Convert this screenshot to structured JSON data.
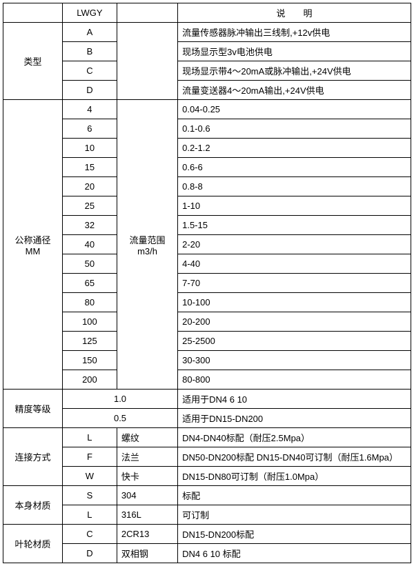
{
  "header": {
    "lwgy": "LWGY",
    "desc": "说　　明"
  },
  "type": {
    "label": "类型",
    "col3_blank": "",
    "rows": [
      {
        "code": "A",
        "desc": "流量传感器脉冲输出三线制,+12v供电"
      },
      {
        "code": "B",
        "desc": "现场显示型3v电池供电"
      },
      {
        "code": "C",
        "desc": "现场显示带4～20mA或脉冲输出,+24V供电"
      },
      {
        "code": "D",
        "desc": "流量变送器4～20mA输出,+24V供电"
      }
    ]
  },
  "dn": {
    "label": "公称通径\nMM",
    "range_label": "流量范围\nm3/h",
    "rows": [
      {
        "code": "4",
        "val": "0.04-0.25"
      },
      {
        "code": "6",
        "val": "0.1-0.6"
      },
      {
        "code": "10",
        "val": "0.2-1.2"
      },
      {
        "code": "15",
        "val": "0.6-6"
      },
      {
        "code": "20",
        "val": "0.8-8"
      },
      {
        "code": "25",
        "val": "1-10"
      },
      {
        "code": "32",
        "val": "1.5-15"
      },
      {
        "code": "40",
        "val": "2-20"
      },
      {
        "code": "50",
        "val": "4-40"
      },
      {
        "code": "65",
        "val": "7-70"
      },
      {
        "code": "80",
        "val": "10-100"
      },
      {
        "code": "100",
        "val": "20-200"
      },
      {
        "code": "125",
        "val": "25-2500"
      },
      {
        "code": "150",
        "val": "30-300"
      },
      {
        "code": "200",
        "val": "80-800"
      }
    ]
  },
  "accuracy": {
    "label": "精度等级",
    "rows": [
      {
        "val": "1.0",
        "desc": "适用于DN4  6  10"
      },
      {
        "val": "0.5",
        "desc": "适用于DN15-DN200"
      }
    ]
  },
  "conn": {
    "label": "连接方式",
    "rows": [
      {
        "code": "L",
        "name": "螺纹",
        "desc": "DN4-DN40标配（耐压2.5Mpa）"
      },
      {
        "code": "F",
        "name": "法兰",
        "desc": "DN50-DN200标配 DN15-DN40可订制（耐压1.6Mpa）"
      },
      {
        "code": "W",
        "name": "快卡",
        "desc": "DN15-DN80可订制（耐压1.0Mpa）"
      }
    ]
  },
  "bodymat": {
    "label": "本身材质",
    "rows": [
      {
        "code": "S",
        "name": "304",
        "desc": "标配"
      },
      {
        "code": "L",
        "name": "316L",
        "desc": "可订制"
      }
    ]
  },
  "impeller": {
    "label": "叶轮材质",
    "rows": [
      {
        "code": "C",
        "name": "2CR13",
        "desc": "DN15-DN200标配"
      },
      {
        "code": "D",
        "name": "双相钢",
        "desc": "DN4 6 10 标配"
      }
    ]
  }
}
